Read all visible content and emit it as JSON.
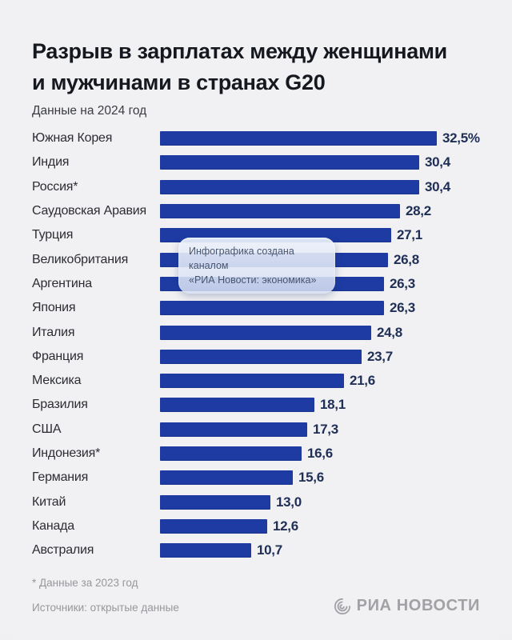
{
  "header": {
    "title_line1": "Разрыв в зарплатах между женщинами",
    "title_line2": "и мужчинами в странах G20",
    "subtitle": "Данные на 2024 год"
  },
  "chart_data": {
    "type": "bar",
    "orientation": "horizontal",
    "title": "Разрыв в зарплатах между женщинами и мужчинами в странах G20",
    "subtitle": "Данные на 2024 год",
    "unit": "%",
    "xlim": [
      0,
      32.5
    ],
    "grid": false,
    "legend": "none",
    "bar_color": "#1e3ba3",
    "categories": [
      "Южная Корея",
      "Индия",
      "Россия*",
      "Саудовская Аравия",
      "Турция",
      "Великобритания",
      "Аргентина",
      "Япония",
      "Италия",
      "Франция",
      "Мексика",
      "Бразилия",
      "США",
      "Индонезия*",
      "Германия",
      "Китай",
      "Канада",
      "Австралия"
    ],
    "values": [
      32.5,
      30.4,
      30.4,
      28.2,
      27.1,
      26.8,
      26.3,
      26.3,
      24.8,
      23.7,
      21.6,
      18.1,
      17.3,
      16.6,
      15.6,
      13.0,
      12.6,
      10.7
    ],
    "value_labels": [
      "32,5%",
      "30,4",
      "30,4",
      "28,2",
      "27,1",
      "26,8",
      "26,3",
      "26,3",
      "24,8",
      "23,7",
      "21,6",
      "18,1",
      "17,3",
      "16,6",
      "15,6",
      "13,0",
      "12,6",
      "10,7"
    ]
  },
  "tooltip": {
    "line1": "Инфографика создана каналом",
    "line2": "«РИА Новости: экономика»"
  },
  "footer": {
    "footnote": "* Данные за 2023 год",
    "sources": "Источники: открытые данные",
    "brand": "РИА НОВОСТИ",
    "brand_color": "#a1a1a6",
    "globe_icon": "ria-globe-icon"
  }
}
